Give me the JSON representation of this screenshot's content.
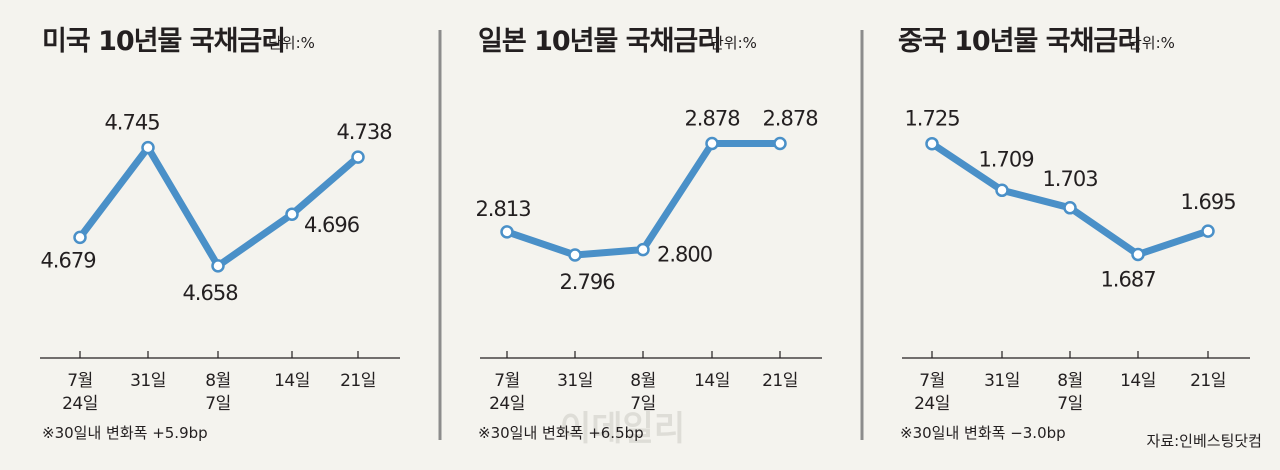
{
  "source": "자료:인베스팅닷컴",
  "watermark": "이데일리",
  "colors": {
    "line": "#4a90c8",
    "point_fill": "#ffffff",
    "divider": "#8c8c8c",
    "axis": "#231f20",
    "background": "#f4f3ee"
  },
  "chart_data": [
    {
      "type": "line",
      "title": "미국 10년물 국채금리",
      "unit": "단위:%",
      "categories": [
        [
          "7월",
          "24일"
        ],
        [
          "31일"
        ],
        [
          "8월",
          "7일"
        ],
        [
          "14일"
        ],
        [
          "21일"
        ]
      ],
      "values": [
        4.679,
        4.745,
        4.658,
        4.696,
        4.738
      ],
      "value_labels": [
        "4.679",
        "4.745",
        "4.658",
        "4.696",
        "4.738"
      ],
      "ylim": [
        4.63,
        4.78
      ],
      "note": "※30일내 변화폭 +5.9bp"
    },
    {
      "type": "line",
      "title": "일본 10년물 국채금리",
      "unit": "단위:%",
      "categories": [
        [
          "7월",
          "24일"
        ],
        [
          "31일"
        ],
        [
          "8월",
          "7일"
        ],
        [
          "14일"
        ],
        [
          "21일"
        ]
      ],
      "values": [
        2.813,
        2.796,
        2.8,
        2.878,
        2.878
      ],
      "value_labels": [
        "2.813",
        "2.796",
        "2.800",
        "2.878",
        "2.878"
      ],
      "ylim": [
        2.76,
        2.91
      ],
      "note": "※30일내 변화폭 +6.5bp"
    },
    {
      "type": "line",
      "title": "중국 10년물 국채금리",
      "unit": "단위:%",
      "categories": [
        [
          "7월",
          "24일"
        ],
        [
          "31일"
        ],
        [
          "8월",
          "7일"
        ],
        [
          "14일"
        ],
        [
          "21일"
        ]
      ],
      "values": [
        1.725,
        1.709,
        1.703,
        1.687,
        1.695
      ],
      "value_labels": [
        "1.725",
        "1.709",
        "1.703",
        "1.687",
        "1.695"
      ],
      "ylim": [
        1.67,
        1.74
      ],
      "note": "※30일내 변화폭 −3.0bp"
    }
  ]
}
